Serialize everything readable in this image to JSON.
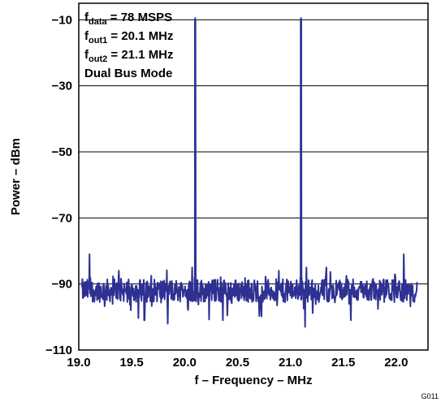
{
  "chart_data": {
    "type": "line",
    "xlabel": "f – Frequency – MHz",
    "ylabel": "Power – dBm",
    "xlim": [
      19.0,
      22.3
    ],
    "ylim": [
      -110,
      -5
    ],
    "xticks": [
      19.0,
      19.5,
      20.0,
      20.5,
      21.0,
      21.5,
      22.0
    ],
    "xtick_labels": [
      "19.0",
      "19.5",
      "20.0",
      "20.5",
      "21.0",
      "21.5",
      "22.0"
    ],
    "yticks": [
      -10,
      -30,
      -50,
      -70,
      -90,
      -110
    ],
    "ytick_labels": [
      "−10",
      "−30",
      "−50",
      "−70",
      "−90",
      "−110"
    ],
    "grid": "horizontal",
    "series_color": "#2e3192",
    "annotations": [
      {
        "main": "f",
        "sub": "data",
        "rest": " = 78 MSPS"
      },
      {
        "main": "f",
        "sub": "out1",
        "rest": " = 20.1 MHz"
      },
      {
        "main": "f",
        "sub": "out2",
        "rest": " = 21.1 MHz"
      },
      {
        "main": "Dual Bus Mode",
        "sub": "",
        "rest": ""
      }
    ],
    "figure_id": "G011",
    "noise_floor_dbm": -92,
    "peaks": [
      {
        "x": 20.1,
        "y": -10
      },
      {
        "x": 21.1,
        "y": -10
      }
    ],
    "spurs": [
      {
        "x": 19.1,
        "y": -81
      },
      {
        "x": 19.38,
        "y": -86
      },
      {
        "x": 20.89,
        "y": -86
      },
      {
        "x": 21.34,
        "y": -85
      },
      {
        "x": 22.07,
        "y": -81
      },
      {
        "x": 20.07,
        "y": -85
      },
      {
        "x": 21.15,
        "y": -85
      }
    ],
    "dips": [
      {
        "x": 19.62,
        "y": -101
      },
      {
        "x": 19.84,
        "y": -102
      },
      {
        "x": 20.36,
        "y": -101
      },
      {
        "x": 21.14,
        "y": -103
      },
      {
        "x": 21.57,
        "y": -101
      }
    ]
  }
}
